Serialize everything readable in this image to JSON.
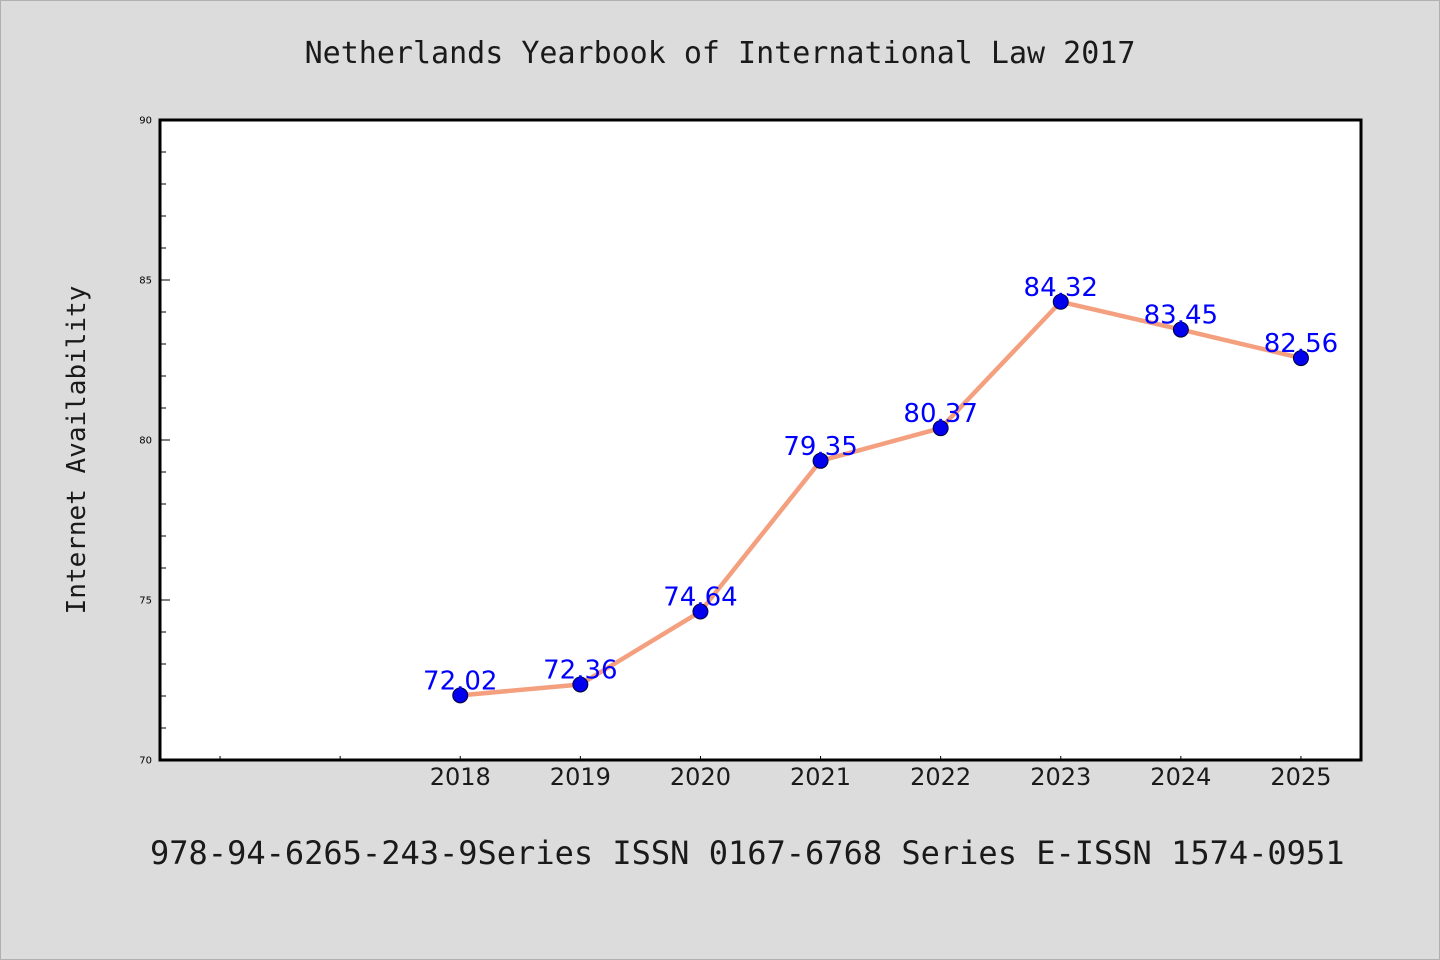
{
  "chart_data": {
    "type": "line",
    "title": "Netherlands Yearbook of International Law 2017",
    "ylabel": "Internet Availability",
    "xlabel": "",
    "footer": "978-94-6265-243-9Series ISSN 0167-6768 Series E-ISSN 1574-0951",
    "categories": [
      "2018",
      "2019",
      "2020",
      "2021",
      "2022",
      "2023",
      "2024",
      "2025"
    ],
    "category_offset": 2,
    "category_slots": 10,
    "series": [
      {
        "values": [
          72.02,
          72.36,
          74.64,
          79.35,
          80.37,
          84.32,
          83.45,
          82.56
        ],
        "labels": [
          "72.02",
          "72.36",
          "74.64",
          "79.35",
          "80.37",
          "84.32",
          "83.45",
          "82.56"
        ]
      }
    ],
    "ylim": [
      70,
      90
    ],
    "yticks": [
      "70",
      "75",
      "80",
      "85",
      "90"
    ],
    "grid": false,
    "colors": {
      "background": "#dcdcdc",
      "plot_background": "#ffffff",
      "line": "#f4a07f",
      "marker": "#0000ee",
      "label": "#0000ff"
    }
  }
}
